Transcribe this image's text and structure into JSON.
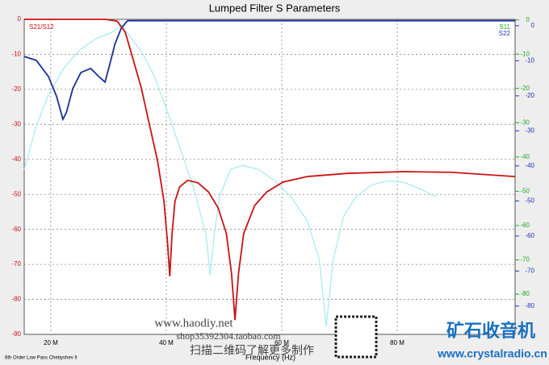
{
  "chart_data": {
    "type": "line",
    "title": "Lumped Filter S Parameters",
    "x_label": "Frequency (Hz)",
    "footnote": "6th Order Low Pass Chebyshev II",
    "xlim": [
      15.4,
      100.4
    ],
    "xticks": [
      {
        "value": 20,
        "label": "20 M"
      },
      {
        "value": 40,
        "label": "40 M"
      },
      {
        "value": 60,
        "label": "60 M"
      },
      {
        "value": 80,
        "label": "80 M"
      }
    ],
    "ylim": [
      -90,
      0
    ],
    "yticks": [
      0,
      -10,
      -20,
      -30,
      -40,
      -50,
      -60,
      -70,
      -80,
      -90
    ],
    "y2lim": [
      -90.8,
      1.1
    ],
    "y2ticks": [
      0,
      -10,
      -20,
      -30,
      -40,
      -50,
      -60,
      -70,
      -80
    ],
    "y2color": "#22aa22",
    "y3lim": [
      -89,
      0.9
    ],
    "y3ticks": [
      0,
      -10,
      -20,
      -30,
      -40,
      -50,
      -60,
      -70,
      -80
    ],
    "y3color": "#2233bb",
    "grid": true,
    "series": [
      {
        "name": "S21/S12",
        "color": "#cc1111",
        "x": [
          15.4,
          25.2,
          29.4,
          31.5,
          32.9,
          34.3,
          35.7,
          37.1,
          38.5,
          39.6,
          40.2,
          40.6,
          41.0,
          41.5,
          42.3,
          43.7,
          45.5,
          47.3,
          49.0,
          50.4,
          51.3,
          51.9,
          52.5,
          53.4,
          55.3,
          57.4,
          60.2,
          64.4,
          71.3,
          81.1,
          89.5,
          100.4
        ],
        "values": [
          0,
          0,
          0,
          -0.5,
          -3.7,
          -11.7,
          -19.8,
          -30.2,
          -40.5,
          -52,
          -63.5,
          -73.4,
          -61.2,
          -52,
          -47.9,
          -46,
          -46.7,
          -49.3,
          -53.9,
          -61.2,
          -72.7,
          -85.9,
          -72.7,
          -61.2,
          -53.2,
          -49.3,
          -46.5,
          -44.9,
          -44,
          -43.5,
          -43.7,
          -44.9
        ]
      },
      {
        "name": "S11",
        "color": "#a8ecf4",
        "axis": "y2",
        "x": [
          15.4,
          17.5,
          19.6,
          22.4,
          25.2,
          28.0,
          30.8,
          32.2,
          33.6,
          35.7,
          37.8,
          39.9,
          42.0,
          44.8,
          46.9,
          47.6,
          48.3,
          49.2,
          51.1,
          53.2,
          56.0,
          58.8,
          61.6,
          64.4,
          66.5,
          67.7,
          68.9,
          70.7,
          72.8,
          75.6,
          78.4,
          81.2,
          84.0,
          86.8
        ],
        "values": [
          -42.7,
          -30,
          -20.9,
          -12.8,
          -7.6,
          -4.4,
          -2.5,
          -0.5,
          -3.7,
          -8.3,
          -15,
          -24.3,
          -34.6,
          -48.4,
          -62,
          -73.6,
          -62,
          -50.7,
          -42.7,
          -41.5,
          -42.7,
          -46,
          -50.7,
          -57.6,
          -69,
          -88.5,
          -69,
          -56.4,
          -50.7,
          -47.2,
          -46,
          -46.5,
          -48.4,
          -50.7
        ]
      },
      {
        "name": "S22",
        "color": "#1a2f99",
        "axis": "y3",
        "x": [
          15.4,
          17.5,
          19.6,
          21.0,
          22.1,
          22.7,
          23.8,
          25.2,
          26.9,
          28.3,
          29.4,
          30.2,
          31.1,
          32.2,
          33.3,
          35.0,
          60.0,
          100.4
        ],
        "values": [
          -9.7,
          -10.8,
          -15.4,
          -21.1,
          -27.6,
          -25.7,
          -18.9,
          -14.3,
          -13.1,
          -15.4,
          -17,
          -12,
          -6.2,
          -1.6,
          0.5,
          0.5,
          0.5,
          0.5
        ]
      }
    ],
    "annotations": [
      "www.haodiy.net",
      "shop35392304.taobao.com",
      "扫描二维码了解更多制作",
      "矿石收音机",
      "www.crystalradio.cn"
    ]
  }
}
